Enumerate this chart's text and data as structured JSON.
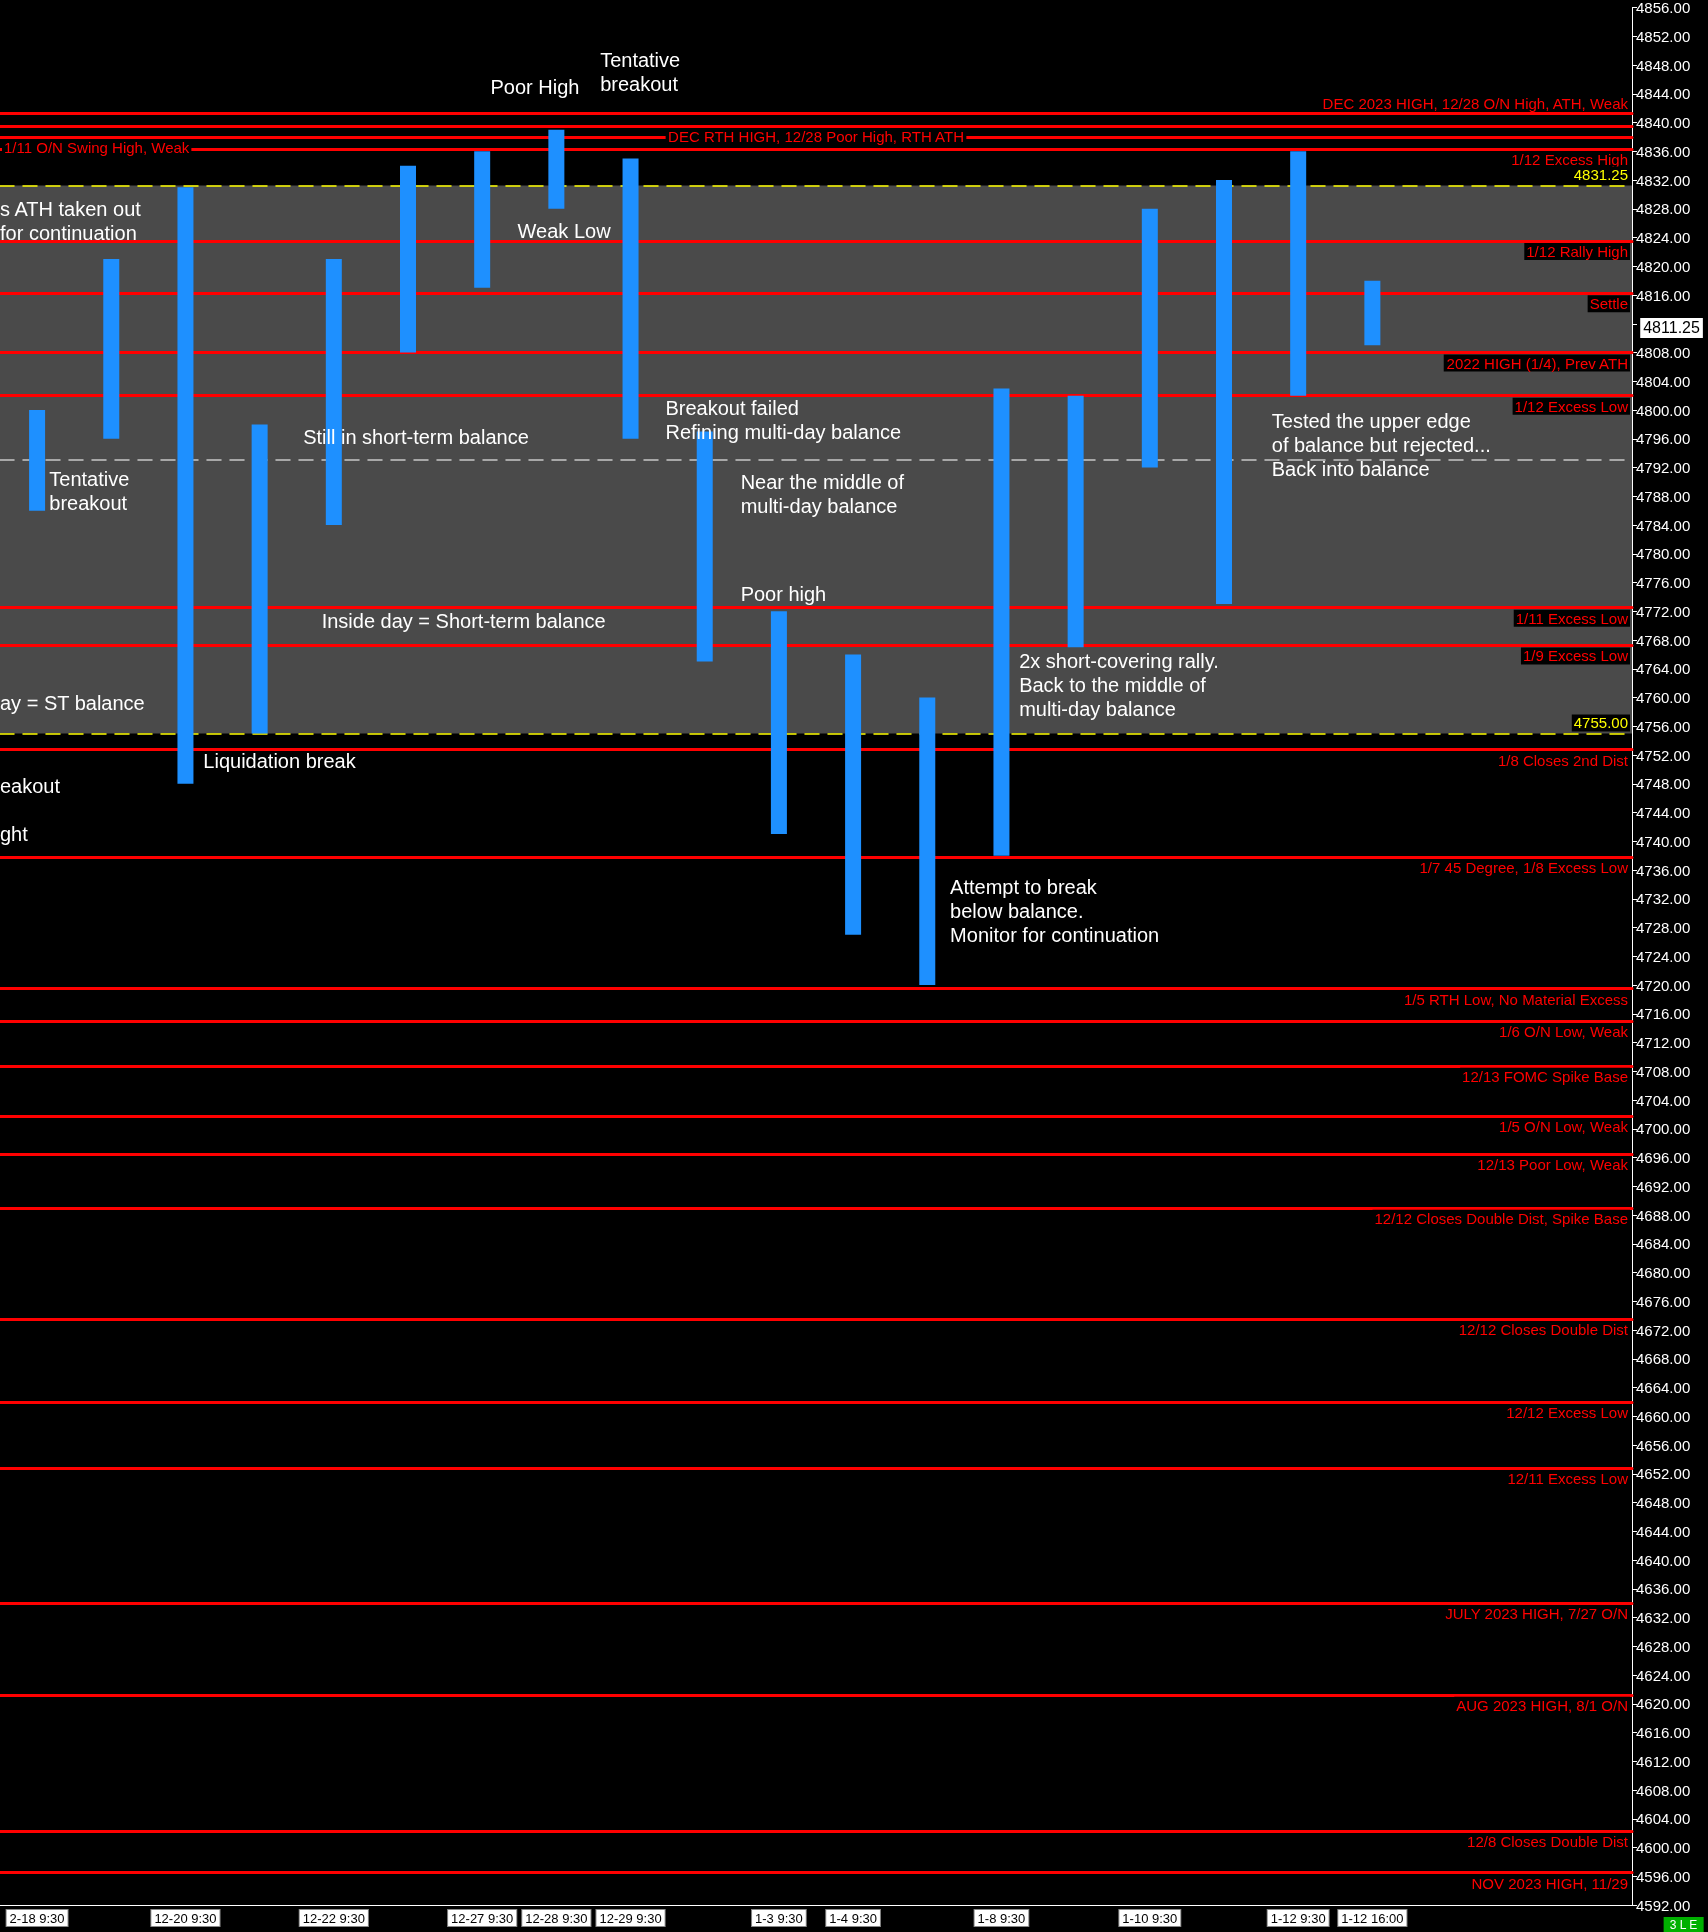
{
  "chart_data": {
    "type": "bar",
    "categories": [
      "2-18 9:30",
      null,
      "12-20 9:30",
      null,
      "12-22 9:30",
      null,
      "12-27 9:30",
      "12-28 9:30",
      "12-29 9:30",
      null,
      "1-3 9:30",
      "1-4 9:30",
      null,
      "1-8 9:30",
      null,
      "1-10 9:30",
      null,
      "1-12 9:30",
      "1-12 16:00",
      null,
      null,
      null
    ],
    "base": [
      4786,
      4796,
      4748,
      4755,
      4784,
      4808,
      4817,
      4828,
      4796,
      4765,
      4741,
      4727,
      4720,
      4738,
      4767,
      4792,
      4773,
      4802,
      4809,
      null,
      null,
      null
    ],
    "values": [
      14,
      25,
      83,
      43,
      37,
      26,
      19,
      11,
      39,
      32,
      31,
      39,
      40,
      65,
      35,
      36,
      59,
      34,
      9,
      null,
      null,
      null
    ],
    "color": "#1e90ff",
    "ylim": [
      4592,
      4856
    ],
    "yticks": [
      {
        "value": 4592,
        "label": "4592.00"
      },
      {
        "value": 4596,
        "label": "4596.00"
      },
      {
        "value": 4600,
        "label": "4600.00"
      },
      {
        "value": 4604,
        "label": "4604.00"
      },
      {
        "value": 4608,
        "label": "4608.00"
      },
      {
        "value": 4612,
        "label": "4612.00"
      },
      {
        "value": 4616,
        "label": "4616.00"
      },
      {
        "value": 4620,
        "label": "4620.00"
      },
      {
        "value": 4624,
        "label": "4624.00"
      },
      {
        "value": 4628,
        "label": "4628.00"
      },
      {
        "value": 4632,
        "label": "4632.00"
      },
      {
        "value": 4636,
        "label": "4636.00"
      },
      {
        "value": 4640,
        "label": "4640.00"
      },
      {
        "value": 4644,
        "label": "4644.00"
      },
      {
        "value": 4648,
        "label": "4648.00"
      },
      {
        "value": 4652,
        "label": "4652.00"
      },
      {
        "value": 4656,
        "label": "4656.00"
      },
      {
        "value": 4660,
        "label": "4660.00"
      },
      {
        "value": 4664,
        "label": "4664.00"
      },
      {
        "value": 4668,
        "label": "4668.00"
      },
      {
        "value": 4672,
        "label": "4672.00"
      },
      {
        "value": 4676,
        "label": "4676.00"
      },
      {
        "value": 4680,
        "label": "4680.00"
      },
      {
        "value": 4684,
        "label": "4684.00"
      },
      {
        "value": 4688,
        "label": "4688.00"
      },
      {
        "value": 4692,
        "label": "4692.00"
      },
      {
        "value": 4696,
        "label": "4696.00"
      },
      {
        "value": 4700,
        "label": "4700.00"
      },
      {
        "value": 4704,
        "label": "4704.00"
      },
      {
        "value": 4708,
        "label": "4708.00"
      },
      {
        "value": 4712,
        "label": "4712.00"
      },
      {
        "value": 4716,
        "label": "4716.00"
      },
      {
        "value": 4720,
        "label": "4720.00"
      },
      {
        "value": 4724,
        "label": "4724.00"
      },
      {
        "value": 4728,
        "label": "4728.00"
      },
      {
        "value": 4732,
        "label": "4732.00"
      },
      {
        "value": 4736,
        "label": "4736.00"
      },
      {
        "value": 4740,
        "label": "4740.00"
      },
      {
        "value": 4744,
        "label": "4744.00"
      },
      {
        "value": 4748,
        "label": "4748.00"
      },
      {
        "value": 4752,
        "label": "4752.00"
      },
      {
        "value": 4756,
        "label": "4756.00"
      },
      {
        "value": 4760,
        "label": "4760.00"
      },
      {
        "value": 4764,
        "label": "4764.00"
      },
      {
        "value": 4768,
        "label": "4768.00"
      },
      {
        "value": 4772,
        "label": "4772.00"
      },
      {
        "value": 4776,
        "label": "4776.00"
      },
      {
        "value": 4780,
        "label": "4780.00"
      },
      {
        "value": 4784,
        "label": "4784.00"
      },
      {
        "value": 4788,
        "label": "4788.00"
      },
      {
        "value": 4792,
        "label": "4792.00"
      },
      {
        "value": 4796,
        "label": "4796.00"
      },
      {
        "value": 4800,
        "label": "4800.00"
      },
      {
        "value": 4804,
        "label": "4804.00"
      },
      {
        "value": 4808,
        "label": "4808.00"
      },
      {
        "value": 4812,
        "label": null
      },
      {
        "value": 4816,
        "label": "4816.00"
      },
      {
        "value": 4820,
        "label": "4820.00"
      },
      {
        "value": 4824,
        "label": "4824.00"
      },
      {
        "value": 4828,
        "label": "4828.00"
      },
      {
        "value": 4832,
        "label": "4832.00"
      },
      {
        "value": 4836,
        "label": "4836.00"
      },
      {
        "value": 4840,
        "label": "4840.00"
      },
      {
        "value": 4844,
        "label": "4844.00"
      },
      {
        "value": 4848,
        "label": "4848.00"
      },
      {
        "value": 4852,
        "label": "4852.00"
      },
      {
        "value": 4856,
        "label": "4856.00"
      }
    ],
    "grid": false,
    "bands": [
      {
        "axis": "y",
        "from": 4755,
        "to": 4831.25,
        "color": "#4a4a4a"
      }
    ],
    "ref_lines": [
      {
        "axis": "y",
        "value": 4841.25,
        "label": "DEC 2023 HIGH, 12/28 O/N High, ATH, Weak",
        "color": "#ff0000",
        "line_style": "solid"
      },
      {
        "axis": "y",
        "value": 4839.5,
        "label": "DEC RTH HIGH, 12/28 Poor High, RTH ATH",
        "color": "#ff0000",
        "line_style": "solid"
      },
      {
        "axis": "y",
        "value": 4838,
        "label": "1/11 O/N Swing High, Weak",
        "color": "#ff0000",
        "line_style": "solid"
      },
      {
        "axis": "y",
        "value": 4836.25,
        "label": "1/12 Excess High",
        "color": "#ff0000",
        "line_style": "solid"
      },
      {
        "axis": "y",
        "value": 4831.25,
        "label": "4831.25",
        "color": "#ffff00",
        "line_style": "dashed"
      },
      {
        "axis": "y",
        "value": 4823.5,
        "label": "1/12 Rally High",
        "color": "#ff0000",
        "line_style": "solid"
      },
      {
        "axis": "y",
        "value": 4816.25,
        "label": "Settle",
        "color": "#ff0000",
        "line_style": "solid"
      },
      {
        "axis": "y",
        "value": 4808,
        "label": "2022 HIGH (1/4), Prev ATH",
        "color": "#ff0000",
        "line_style": "solid"
      },
      {
        "axis": "y",
        "value": 4802,
        "label": "1/12 Excess Low",
        "color": "#ff0000",
        "line_style": "solid"
      },
      {
        "axis": "y",
        "value": 4793.125,
        "color": "#c8c8c8",
        "line_style": "dashed"
      },
      {
        "axis": "y",
        "value": 4772.5,
        "label": "1/11 Excess Low",
        "color": "#ff0000",
        "line_style": "solid"
      },
      {
        "axis": "y",
        "value": 4767.25,
        "label": "1/9 Excess Low",
        "color": "#ff0000",
        "line_style": "solid"
      },
      {
        "axis": "y",
        "value": 4755,
        "label": "4755.00",
        "color": "#ffff00",
        "line_style": "dashed"
      },
      {
        "axis": "y",
        "value": 4752.75,
        "label": "1/8 Closes 2nd Dist",
        "color": "#ff0000",
        "line_style": "solid"
      },
      {
        "axis": "y",
        "value": 4737.75,
        "label": "1/7 45 Degree, 1/8 Excess Low",
        "color": "#ff0000",
        "line_style": "solid"
      },
      {
        "axis": "y",
        "value": 4719.5,
        "label": "1/5 RTH Low, No Material Excess",
        "color": "#ff0000",
        "line_style": "solid"
      },
      {
        "axis": "y",
        "value": 4715,
        "label": "1/6 O/N Low, Weak",
        "color": "#ff0000",
        "line_style": "solid"
      },
      {
        "axis": "y",
        "value": 4708.75,
        "label": "12/13 FOMC Spike Base",
        "color": "#ff0000",
        "line_style": "solid"
      },
      {
        "axis": "y",
        "value": 4701.75,
        "label": "1/5 O/N Low, Weak",
        "color": "#ff0000",
        "line_style": "solid"
      },
      {
        "axis": "y",
        "value": 4696.5,
        "label": "12/13 Poor Low, Weak",
        "color": "#ff0000",
        "line_style": "solid"
      },
      {
        "axis": "y",
        "value": 4689,
        "label": "12/12 Closes Double Dist, Spike Base",
        "color": "#ff0000",
        "line_style": "solid"
      },
      {
        "axis": "y",
        "value": 4673.5,
        "label": "12/12 Closes Double Dist",
        "color": "#ff0000",
        "line_style": "solid"
      },
      {
        "axis": "y",
        "value": 4662,
        "label": "12/12 Excess Low",
        "color": "#ff0000",
        "line_style": "solid"
      },
      {
        "axis": "y",
        "value": 4652.75,
        "label": "12/11 Excess Low",
        "color": "#ff0000",
        "line_style": "solid"
      },
      {
        "axis": "y",
        "value": 4634,
        "label": "JULY 2023 HIGH, 7/27 O/N",
        "color": "#ff0000",
        "line_style": "solid"
      },
      {
        "axis": "y",
        "value": 4621.25,
        "label": "AUG 2023 HIGH, 8/1 O/N",
        "color": "#ff0000",
        "line_style": "solid"
      },
      {
        "axis": "y",
        "value": 4602.25,
        "label": "12/8 Closes Double Dist",
        "color": "#ff0000",
        "line_style": "solid"
      },
      {
        "axis": "y",
        "value": 4596.5,
        "label": "NOV 2023 HIGH, 11/29",
        "color": "#ff0000",
        "line_style": "solid"
      }
    ],
    "annotations": [
      "Poor High",
      "Tentative\nbreakout",
      "s ATH taken out\nfor continuation",
      "Weak Low",
      "Breakout failed\nRefining multi-day balance",
      "Still in short-term balance",
      "Tentative\nbreakout",
      "Near the middle of\nmulti-day balance",
      "Poor high",
      "Inside day = Short-term balance",
      "2x short-covering rally.\nBack to the middle of\nmulti-day balance",
      "ay = ST balance",
      "Liquidation break",
      "eakout",
      "ght",
      "Attempt to break\nbelow balance.\nMonitor for continuation",
      "Tested the upper edge\nof balance but rejected...\nBack into balance",
      "3 L E",
      "4811.25"
    ]
  }
}
